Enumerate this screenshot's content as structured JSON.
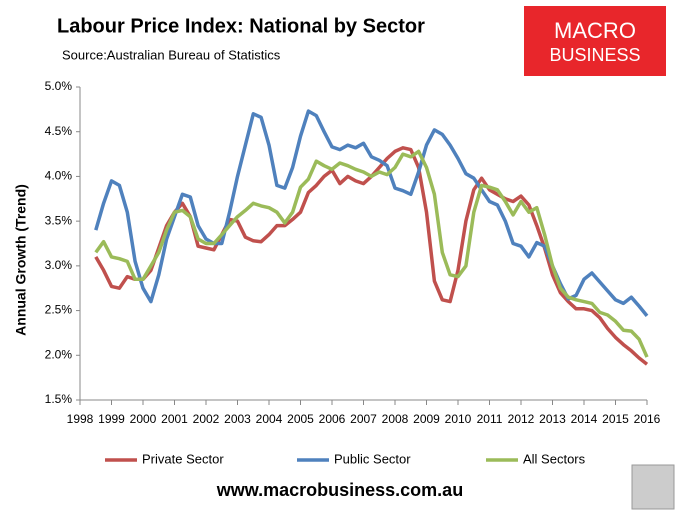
{
  "chart_data": {
    "type": "line",
    "title": "Labour Price Index: National by Sector",
    "subtitle": "Source:Australian Bureau of Statistics",
    "ylabel": "Annual Growth (Trend)",
    "x": [
      1998.5,
      1998.75,
      1999,
      1999.25,
      1999.5,
      1999.75,
      2000,
      2000.25,
      2000.5,
      2000.75,
      2001,
      2001.25,
      2001.5,
      2001.75,
      2002,
      2002.25,
      2002.5,
      2002.75,
      2003,
      2003.25,
      2003.5,
      2003.75,
      2004,
      2004.25,
      2004.5,
      2004.75,
      2005,
      2005.25,
      2005.5,
      2005.75,
      2006,
      2006.25,
      2006.5,
      2006.75,
      2007,
      2007.25,
      2007.5,
      2007.75,
      2008,
      2008.25,
      2008.5,
      2008.75,
      2009,
      2009.25,
      2009.5,
      2009.75,
      2010,
      2010.25,
      2010.5,
      2010.75,
      2011,
      2011.25,
      2011.5,
      2011.75,
      2012,
      2012.25,
      2012.5,
      2012.75,
      2013,
      2013.25,
      2013.5,
      2013.75,
      2014,
      2014.25,
      2014.5,
      2014.75,
      2015,
      2015.25,
      2015.5,
      2015.75,
      2016
    ],
    "series": [
      {
        "name": "Private Sector",
        "color": "#c0504d",
        "values": [
          3.1,
          2.95,
          2.77,
          2.75,
          2.88,
          2.85,
          2.85,
          2.95,
          3.2,
          3.45,
          3.6,
          3.7,
          3.55,
          3.22,
          3.2,
          3.18,
          3.35,
          3.52,
          3.5,
          3.32,
          3.28,
          3.27,
          3.35,
          3.45,
          3.45,
          3.52,
          3.6,
          3.82,
          3.9,
          4.0,
          4.07,
          3.92,
          4.0,
          3.95,
          3.92,
          4.0,
          4.1,
          4.2,
          4.28,
          4.32,
          4.3,
          4.1,
          3.6,
          2.83,
          2.62,
          2.6,
          2.95,
          3.5,
          3.85,
          3.98,
          3.85,
          3.8,
          3.75,
          3.72,
          3.78,
          3.68,
          3.45,
          3.2,
          2.9,
          2.7,
          2.6,
          2.52,
          2.52,
          2.5,
          2.42,
          2.3,
          2.2,
          2.12,
          2.05,
          1.97,
          1.9
        ]
      },
      {
        "name": "Public Sector",
        "color": "#4f81bd",
        "values": [
          3.4,
          3.7,
          3.95,
          3.9,
          3.6,
          3.05,
          2.75,
          2.6,
          2.9,
          3.3,
          3.55,
          3.8,
          3.77,
          3.45,
          3.3,
          3.25,
          3.25,
          3.6,
          4.0,
          4.35,
          4.7,
          4.66,
          4.35,
          3.9,
          3.87,
          4.1,
          4.45,
          4.73,
          4.68,
          4.5,
          4.33,
          4.3,
          4.35,
          4.32,
          4.37,
          4.22,
          4.18,
          4.12,
          3.87,
          3.84,
          3.8,
          4.05,
          4.35,
          4.52,
          4.47,
          4.35,
          4.2,
          4.03,
          3.98,
          3.85,
          3.72,
          3.68,
          3.5,
          3.25,
          3.22,
          3.1,
          3.26,
          3.22,
          3.0,
          2.8,
          2.63,
          2.67,
          2.85,
          2.92,
          2.82,
          2.72,
          2.62,
          2.58,
          2.65,
          2.55,
          2.44
        ]
      },
      {
        "name": "All Sectors",
        "color": "#9bbb59",
        "values": [
          3.15,
          3.27,
          3.1,
          3.08,
          3.05,
          2.85,
          2.85,
          3.0,
          3.15,
          3.4,
          3.6,
          3.62,
          3.55,
          3.3,
          3.25,
          3.25,
          3.35,
          3.45,
          3.55,
          3.62,
          3.7,
          3.67,
          3.65,
          3.6,
          3.48,
          3.6,
          3.88,
          3.97,
          4.17,
          4.12,
          4.08,
          4.15,
          4.12,
          4.08,
          4.05,
          4.0,
          4.05,
          4.02,
          4.1,
          4.25,
          4.22,
          4.28,
          4.1,
          3.8,
          3.15,
          2.9,
          2.88,
          3.0,
          3.6,
          3.9,
          3.88,
          3.85,
          3.72,
          3.57,
          3.72,
          3.6,
          3.65,
          3.35,
          3.0,
          2.75,
          2.65,
          2.62,
          2.6,
          2.58,
          2.48,
          2.45,
          2.38,
          2.28,
          2.27,
          2.18,
          1.98
        ]
      }
    ],
    "xlim": [
      1998,
      2016
    ],
    "xticks": [
      1998,
      1999,
      2000,
      2001,
      2002,
      2003,
      2004,
      2005,
      2006,
      2007,
      2008,
      2009,
      2010,
      2011,
      2012,
      2013,
      2014,
      2015,
      2016
    ],
    "ylim": [
      1.5,
      5
    ],
    "yticks": [
      {
        "value": 1.5,
        "label": "1.5%"
      },
      {
        "value": 2,
        "label": "2.0%"
      },
      {
        "value": 2.5,
        "label": "2.5%"
      },
      {
        "value": 3,
        "label": "3.0%"
      },
      {
        "value": 3.5,
        "label": "3.5%"
      },
      {
        "value": 4,
        "label": "4.0%"
      },
      {
        "value": 4.5,
        "label": "4.5%"
      },
      {
        "value": 5,
        "label": "5.0%"
      }
    ],
    "grid": false,
    "legend": "bottom"
  },
  "logo": {
    "line1": "MACRO",
    "line2": "BUSINESS"
  },
  "footer": "www.macrobusiness.com.au"
}
